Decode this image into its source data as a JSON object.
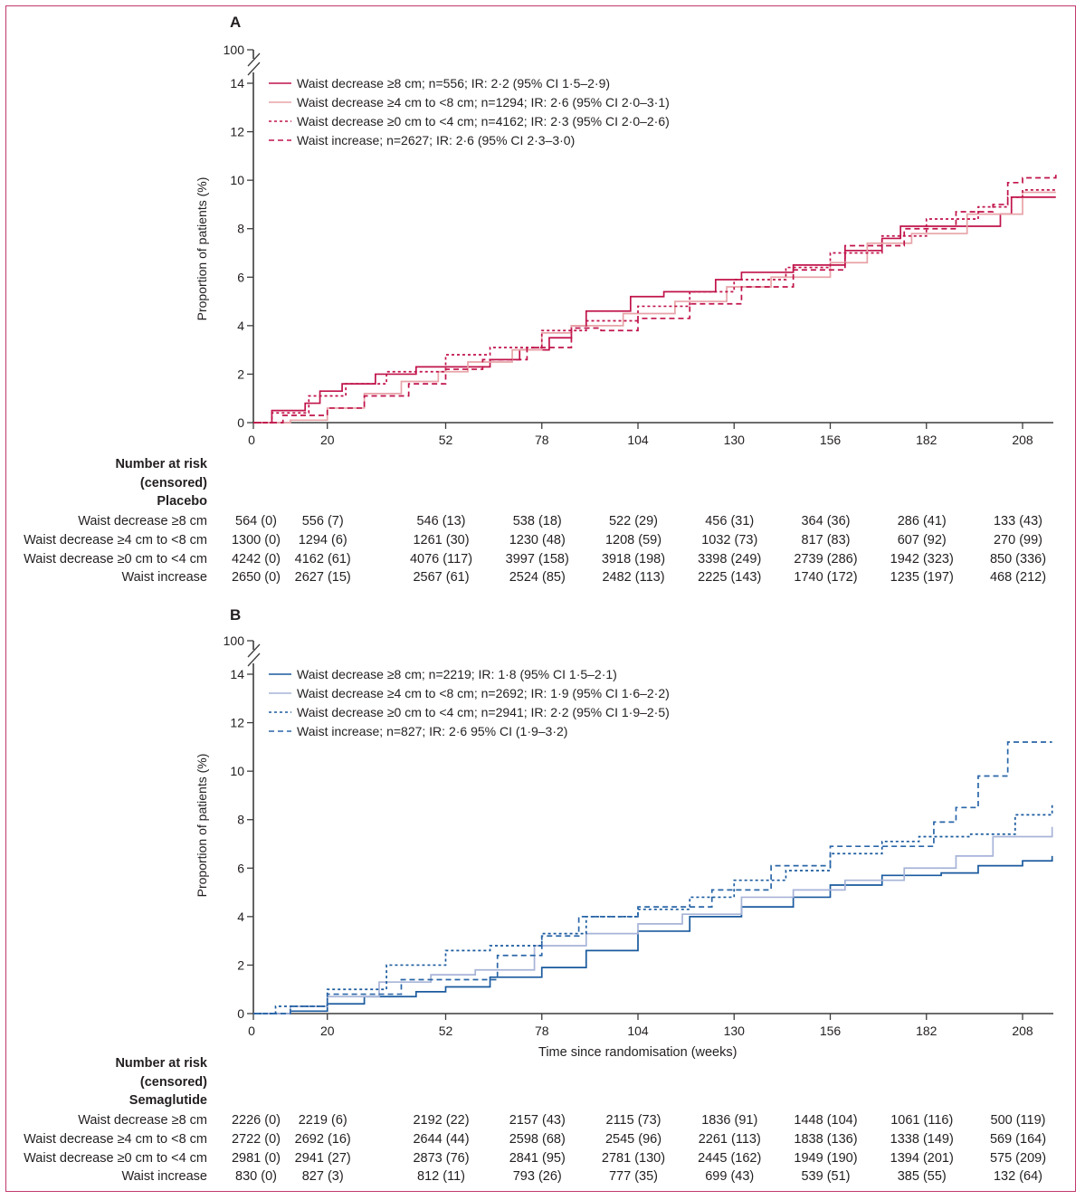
{
  "chart_data": [
    {
      "type": "line",
      "panel": "A",
      "arm": "Placebo",
      "xlabel": "",
      "ylabel": "Proportion of patients (%)",
      "xlim": [
        0,
        217
      ],
      "ylim": [
        0,
        14
      ],
      "y_break_label": "100",
      "x_ticks": [
        0,
        20,
        52,
        78,
        104,
        130,
        156,
        182,
        208
      ],
      "y_ticks": [
        0,
        2,
        4,
        6,
        8,
        10,
        12,
        14
      ],
      "legend_position": "top-left",
      "series": [
        {
          "name": "Waist decrease ≥8 cm; n=556; IR: 2·2 (95% CI 1·5–2·9)",
          "color": "#c0134a",
          "style": "solid",
          "points": [
            [
              0,
              0
            ],
            [
              5,
              0
            ],
            [
              5,
              0.5
            ],
            [
              14,
              0.5
            ],
            [
              14,
              0.8
            ],
            [
              18,
              1.3
            ],
            [
              24,
              1.6
            ],
            [
              33,
              2.0
            ],
            [
              44,
              2.3
            ],
            [
              52,
              2.3
            ],
            [
              64,
              2.6
            ],
            [
              72,
              3.0
            ],
            [
              80,
              3.5
            ],
            [
              86,
              4.0
            ],
            [
              90,
              4.6
            ],
            [
              102,
              5.2
            ],
            [
              111,
              5.4
            ],
            [
              125,
              5.9
            ],
            [
              132,
              6.2
            ],
            [
              146,
              6.5
            ],
            [
              160,
              7.1
            ],
            [
              170,
              7.6
            ],
            [
              175,
              8.1
            ],
            [
              197,
              8.1
            ],
            [
              202,
              8.6
            ],
            [
              205,
              9.3
            ],
            [
              217,
              9.3
            ]
          ]
        },
        {
          "name": "Waist decrease ≥4 cm to <8 cm; n=1294; IR: 2·6 (95% CI 2·0–3·1)",
          "color": "#e8a3a8",
          "style": "solid",
          "points": [
            [
              0,
              0
            ],
            [
              10,
              0.1
            ],
            [
              20,
              0.6
            ],
            [
              30,
              1.2
            ],
            [
              40,
              1.7
            ],
            [
              50,
              2.1
            ],
            [
              58,
              2.5
            ],
            [
              70,
              3.0
            ],
            [
              78,
              3.7
            ],
            [
              86,
              4.0
            ],
            [
              100,
              4.5
            ],
            [
              114,
              5.0
            ],
            [
              128,
              5.6
            ],
            [
              140,
              6.0
            ],
            [
              156,
              6.6
            ],
            [
              166,
              7.4
            ],
            [
              178,
              7.8
            ],
            [
              190,
              7.8
            ],
            [
              193,
              8.6
            ],
            [
              204,
              8.6
            ],
            [
              208,
              9.5
            ],
            [
              217,
              9.5
            ]
          ]
        },
        {
          "name": "Waist decrease ≥0 cm to <4 cm; n=4162; IR: 2·3 (95% CI 2·0–2·6)",
          "color": "#c0134a",
          "style": "dotted",
          "points": [
            [
              0,
              0
            ],
            [
              5,
              0.4
            ],
            [
              15,
              1.1
            ],
            [
              25,
              1.6
            ],
            [
              36,
              2.1
            ],
            [
              52,
              2.8
            ],
            [
              64,
              3.1
            ],
            [
              78,
              3.8
            ],
            [
              90,
              4.2
            ],
            [
              104,
              4.8
            ],
            [
              118,
              5.4
            ],
            [
              130,
              5.9
            ],
            [
              144,
              6.4
            ],
            [
              156,
              7.0
            ],
            [
              170,
              7.7
            ],
            [
              182,
              8.4
            ],
            [
              196,
              8.9
            ],
            [
              204,
              9.3
            ],
            [
              208,
              9.6
            ],
            [
              217,
              9.6
            ]
          ]
        },
        {
          "name": "Waist increase; n=2627; IR: 2·6 (95% CI 2·3–3·0)",
          "color": "#c0134a",
          "style": "dashed",
          "points": [
            [
              0,
              0
            ],
            [
              8,
              0.3
            ],
            [
              20,
              0.6
            ],
            [
              30,
              1.1
            ],
            [
              42,
              1.6
            ],
            [
              52,
              2.2
            ],
            [
              62,
              2.6
            ],
            [
              74,
              3.1
            ],
            [
              86,
              3.9
            ],
            [
              94,
              3.8
            ],
            [
              104,
              4.3
            ],
            [
              118,
              4.9
            ],
            [
              132,
              5.6
            ],
            [
              146,
              6.3
            ],
            [
              160,
              7.3
            ],
            [
              176,
              8.0
            ],
            [
              190,
              8.7
            ],
            [
              200,
              9.0
            ],
            [
              204,
              9.9
            ],
            [
              208,
              10.1
            ],
            [
              217,
              10.3
            ]
          ]
        }
      ],
      "risk_table": {
        "heading": [
          "Number at risk",
          "(censored)",
          "Placebo"
        ],
        "rows": [
          {
            "label": "Waist decrease ≥8 cm",
            "values": [
              "564 (0)",
              "556 (7)",
              "546 (13)",
              "538 (18)",
              "522 (29)",
              "456 (31)",
              "364 (36)",
              "286 (41)",
              "133 (43)"
            ]
          },
          {
            "label": "Waist decrease ≥4 cm to <8 cm",
            "values": [
              "1300 (0)",
              "1294 (6)",
              "1261 (30)",
              "1230 (48)",
              "1208 (59)",
              "1032 (73)",
              "817 (83)",
              "607 (92)",
              "270 (99)"
            ]
          },
          {
            "label": "Waist decrease ≥0 cm to <4 cm",
            "values": [
              "4242 (0)",
              "4162 (61)",
              "4076 (117)",
              "3997 (158)",
              "3918 (198)",
              "3398 (249)",
              "2739 (286)",
              "1942 (323)",
              "850 (336)"
            ]
          },
          {
            "label": "Waist increase",
            "values": [
              "2650 (0)",
              "2627 (15)",
              "2567 (61)",
              "2524 (85)",
              "2482 (113)",
              "2225 (143)",
              "1740 (172)",
              "1235 (197)",
              "468 (212)"
            ]
          }
        ]
      }
    },
    {
      "type": "line",
      "panel": "B",
      "arm": "Semaglutide",
      "xlabel": "Time since randomisation (weeks)",
      "ylabel": "Proportion of patients (%)",
      "xlim": [
        0,
        217
      ],
      "ylim": [
        0,
        14
      ],
      "y_break_label": "100",
      "x_ticks": [
        0,
        20,
        52,
        78,
        104,
        130,
        156,
        182,
        208
      ],
      "y_ticks": [
        0,
        2,
        4,
        6,
        8,
        10,
        12,
        14
      ],
      "legend_position": "top-left",
      "series": [
        {
          "name": "Waist decrease ≥8 cm; n=2219; IR: 1·8 (95% CI 1·5–2·1)",
          "color": "#1a5a9e",
          "style": "solid",
          "points": [
            [
              0,
              0
            ],
            [
              10,
              0.1
            ],
            [
              20,
              0.4
            ],
            [
              30,
              0.7
            ],
            [
              44,
              0.9
            ],
            [
              52,
              1.1
            ],
            [
              64,
              1.5
            ],
            [
              78,
              1.9
            ],
            [
              90,
              2.6
            ],
            [
              104,
              3.4
            ],
            [
              118,
              4.0
            ],
            [
              132,
              4.4
            ],
            [
              146,
              4.8
            ],
            [
              156,
              5.3
            ],
            [
              170,
              5.7
            ],
            [
              186,
              5.8
            ],
            [
              196,
              6.1
            ],
            [
              208,
              6.3
            ],
            [
              216,
              6.5
            ]
          ]
        },
        {
          "name": "Waist decrease ≥4 cm to <8 cm; n=2692; IR: 1·9 (95% CI 1·6–2·2)",
          "color": "#a7b4d8",
          "style": "solid",
          "points": [
            [
              0,
              0
            ],
            [
              10,
              0.3
            ],
            [
              20,
              0.7
            ],
            [
              34,
              1.3
            ],
            [
              48,
              1.6
            ],
            [
              60,
              1.8
            ],
            [
              76,
              2.8
            ],
            [
              90,
              3.3
            ],
            [
              104,
              3.7
            ],
            [
              116,
              4.1
            ],
            [
              132,
              4.8
            ],
            [
              146,
              5.1
            ],
            [
              160,
              5.5
            ],
            [
              176,
              6.0
            ],
            [
              190,
              6.5
            ],
            [
              200,
              7.3
            ],
            [
              216,
              7.7
            ]
          ]
        },
        {
          "name": "Waist decrease ≥0 cm to <4 cm; n=2941; IR: 2·2 (95% CI 1·9–2·5)",
          "color": "#1a5a9e",
          "style": "dotted",
          "points": [
            [
              0,
              0
            ],
            [
              6,
              0.3
            ],
            [
              20,
              1.0
            ],
            [
              36,
              2.0
            ],
            [
              52,
              2.6
            ],
            [
              64,
              2.8
            ],
            [
              78,
              3.3
            ],
            [
              90,
              4.0
            ],
            [
              104,
              4.3
            ],
            [
              118,
              4.8
            ],
            [
              130,
              5.5
            ],
            [
              144,
              5.9
            ],
            [
              156,
              6.6
            ],
            [
              170,
              7.1
            ],
            [
              180,
              7.3
            ],
            [
              194,
              7.4
            ],
            [
              206,
              8.2
            ],
            [
              216,
              8.6
            ]
          ]
        },
        {
          "name": "Waist increase; n=827; IR: 2·6 95% CI (1·9–3·2)",
          "color": "#2a66a8",
          "style": "dashed",
          "points": [
            [
              0,
              0
            ],
            [
              10,
              0.3
            ],
            [
              20,
              0.8
            ],
            [
              40,
              1.4
            ],
            [
              58,
              1.4
            ],
            [
              66,
              2.4
            ],
            [
              78,
              3.2
            ],
            [
              88,
              4.0
            ],
            [
              104,
              4.4
            ],
            [
              124,
              5.1
            ],
            [
              130,
              5.1
            ],
            [
              140,
              6.1
            ],
            [
              156,
              6.9
            ],
            [
              168,
              6.9
            ],
            [
              184,
              7.9
            ],
            [
              190,
              8.5
            ],
            [
              196,
              9.8
            ],
            [
              202,
              9.8
            ],
            [
              204,
              11.2
            ],
            [
              216,
              11.2
            ]
          ]
        }
      ],
      "risk_table": {
        "heading": [
          "Number at risk",
          "(censored)",
          "Semaglutide"
        ],
        "rows": [
          {
            "label": "Waist decrease ≥8 cm",
            "values": [
              "2226 (0)",
              "2219 (6)",
              "2192 (22)",
              "2157 (43)",
              "2115 (73)",
              "1836 (91)",
              "1448 (104)",
              "1061 (116)",
              "500 (119)"
            ]
          },
          {
            "label": "Waist decrease ≥4 cm to <8 cm",
            "values": [
              "2722 (0)",
              "2692 (16)",
              "2644 (44)",
              "2598 (68)",
              "2545 (96)",
              "2261 (113)",
              "1838 (136)",
              "1338 (149)",
              "569 (164)"
            ]
          },
          {
            "label": "Waist decrease ≥0 cm to <4 cm",
            "values": [
              "2981 (0)",
              "2941 (27)",
              "2873 (76)",
              "2841 (95)",
              "2781 (130)",
              "2445 (162)",
              "1949 (190)",
              "1394 (201)",
              "575 (209)"
            ]
          },
          {
            "label": "Waist increase",
            "values": [
              "830 (0)",
              "827 (3)",
              "812 (11)",
              "793 (26)",
              "777 (35)",
              "699 (43)",
              "539 (51)",
              "385 (55)",
              "132 (64)"
            ]
          }
        ]
      }
    }
  ],
  "colors": {
    "frame_border": "#c2386c",
    "axis": "#3d3d3d",
    "text": "#231f20"
  }
}
